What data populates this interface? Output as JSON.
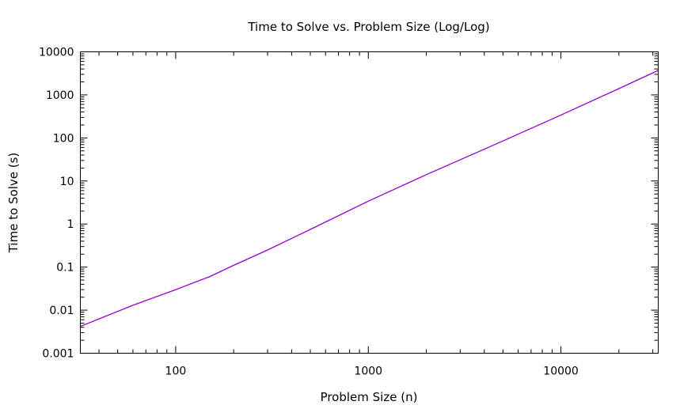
{
  "chart_data": {
    "type": "line",
    "title": "Time to Solve vs. Problem Size (Log/Log)",
    "xlabel": "Problem Size (n)",
    "ylabel": "Time to Solve (s)",
    "xscale": "log",
    "yscale": "log",
    "xlim": [
      32,
      32000
    ],
    "ylim": [
      0.001,
      10000
    ],
    "xticks": [
      "100",
      "1000",
      "10000"
    ],
    "yticks": [
      "0.001",
      "0.01",
      "0.1",
      "1",
      "10",
      "100",
      "1000",
      "10000"
    ],
    "grid": false,
    "series": [
      {
        "color": "#9400d3",
        "x": [
          32,
          60,
          100,
          150,
          200,
          300,
          500,
          1000,
          2000,
          5000,
          10000,
          20000,
          32000
        ],
        "y": [
          0.0042,
          0.013,
          0.03,
          0.06,
          0.11,
          0.25,
          0.75,
          3.4,
          14,
          85,
          340,
          1400,
          3700
        ]
      }
    ]
  }
}
